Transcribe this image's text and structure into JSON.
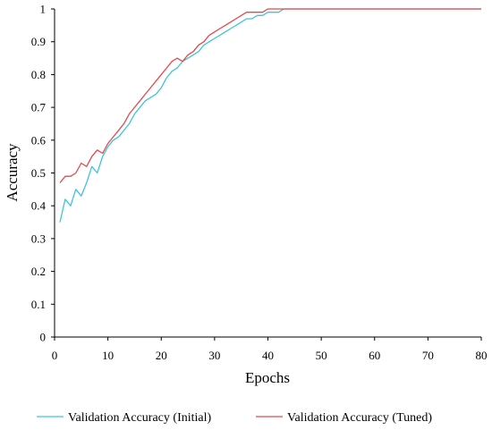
{
  "chart_data": {
    "type": "line",
    "xlabel": "Epochs",
    "ylabel": "Accuracy",
    "xlim": [
      0,
      80
    ],
    "ylim": [
      0,
      1
    ],
    "xticks": [
      0,
      10,
      20,
      30,
      40,
      50,
      60,
      70,
      80
    ],
    "yticks": [
      0,
      0.1,
      0.2,
      0.3,
      0.4,
      0.5,
      0.6,
      0.7,
      0.8,
      0.9,
      1
    ],
    "grid": false,
    "legend_position": "bottom",
    "series": [
      {
        "name": "Validation Accuracy (Initial)",
        "color": "#3fc4dc",
        "points": [
          [
            1,
            0.35
          ],
          [
            2,
            0.42
          ],
          [
            3,
            0.4
          ],
          [
            4,
            0.45
          ],
          [
            5,
            0.43
          ],
          [
            6,
            0.47
          ],
          [
            7,
            0.52
          ],
          [
            8,
            0.5
          ],
          [
            9,
            0.55
          ],
          [
            10,
            0.58
          ],
          [
            11,
            0.6
          ],
          [
            12,
            0.61
          ],
          [
            13,
            0.63
          ],
          [
            14,
            0.65
          ],
          [
            15,
            0.68
          ],
          [
            16,
            0.7
          ],
          [
            17,
            0.72
          ],
          [
            18,
            0.73
          ],
          [
            19,
            0.74
          ],
          [
            20,
            0.76
          ],
          [
            21,
            0.79
          ],
          [
            22,
            0.81
          ],
          [
            23,
            0.82
          ],
          [
            24,
            0.84
          ],
          [
            25,
            0.85
          ],
          [
            26,
            0.86
          ],
          [
            27,
            0.87
          ],
          [
            28,
            0.89
          ],
          [
            29,
            0.9
          ],
          [
            30,
            0.91
          ],
          [
            31,
            0.92
          ],
          [
            32,
            0.93
          ],
          [
            33,
            0.94
          ],
          [
            34,
            0.95
          ],
          [
            35,
            0.96
          ],
          [
            36,
            0.97
          ],
          [
            37,
            0.97
          ],
          [
            38,
            0.98
          ],
          [
            39,
            0.98
          ],
          [
            40,
            0.99
          ],
          [
            41,
            0.99
          ],
          [
            42,
            0.99
          ],
          [
            43,
            1.0
          ],
          [
            50,
            1.0
          ],
          [
            60,
            1.0
          ],
          [
            70,
            1.0
          ],
          [
            80,
            1.0
          ]
        ]
      },
      {
        "name": "Validation Accuracy (Tuned)",
        "color": "#e8474a",
        "points": [
          [
            1,
            0.47
          ],
          [
            2,
            0.49
          ],
          [
            3,
            0.49
          ],
          [
            4,
            0.5
          ],
          [
            5,
            0.53
          ],
          [
            6,
            0.52
          ],
          [
            7,
            0.55
          ],
          [
            8,
            0.57
          ],
          [
            9,
            0.56
          ],
          [
            10,
            0.59
          ],
          [
            11,
            0.61
          ],
          [
            12,
            0.63
          ],
          [
            13,
            0.65
          ],
          [
            14,
            0.68
          ],
          [
            15,
            0.7
          ],
          [
            16,
            0.72
          ],
          [
            17,
            0.74
          ],
          [
            18,
            0.76
          ],
          [
            19,
            0.78
          ],
          [
            20,
            0.8
          ],
          [
            21,
            0.82
          ],
          [
            22,
            0.84
          ],
          [
            23,
            0.85
          ],
          [
            24,
            0.84
          ],
          [
            25,
            0.86
          ],
          [
            26,
            0.87
          ],
          [
            27,
            0.89
          ],
          [
            28,
            0.9
          ],
          [
            29,
            0.92
          ],
          [
            30,
            0.93
          ],
          [
            31,
            0.94
          ],
          [
            32,
            0.95
          ],
          [
            33,
            0.96
          ],
          [
            34,
            0.97
          ],
          [
            35,
            0.98
          ],
          [
            36,
            0.99
          ],
          [
            37,
            0.99
          ],
          [
            38,
            0.99
          ],
          [
            39,
            0.99
          ],
          [
            40,
            1.0
          ],
          [
            50,
            1.0
          ],
          [
            60,
            1.0
          ],
          [
            70,
            1.0
          ],
          [
            80,
            1.0
          ]
        ]
      }
    ]
  }
}
